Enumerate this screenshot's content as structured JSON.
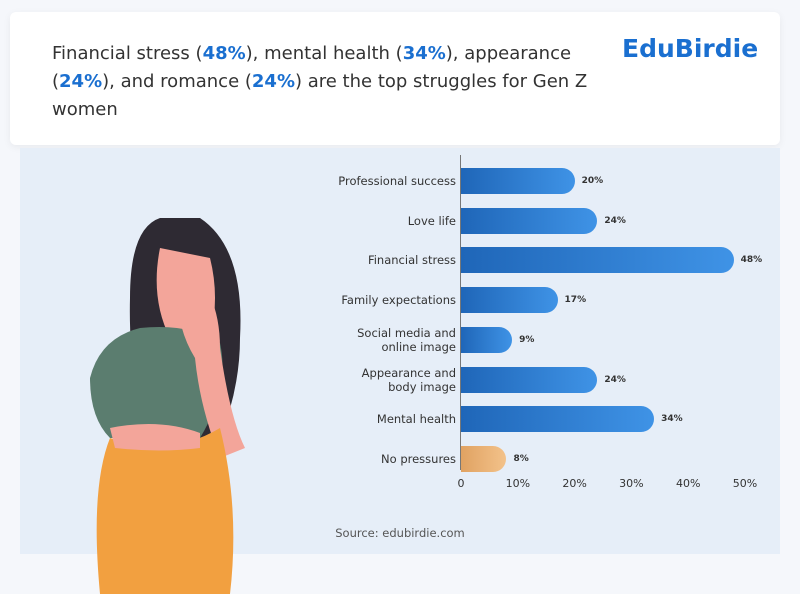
{
  "header": {
    "title_parts": [
      "Financial stress (",
      "48%",
      "), mental health (",
      "34%",
      "), appearance (",
      "24%",
      "), and romance (",
      "24%",
      ") are the top struggles for Gen Z women"
    ],
    "logo": "EduBirdie"
  },
  "chart_data": {
    "type": "bar",
    "orientation": "horizontal",
    "categories": [
      "Professional success",
      "Love life",
      "Financial stress",
      "Family expectations",
      "Social media and online image",
      "Appearance and body image",
      "Mental health",
      "No pressures"
    ],
    "values": [
      20,
      24,
      48,
      17,
      9,
      24,
      34,
      8
    ],
    "value_labels": [
      "20%",
      "24%",
      "48%",
      "17%",
      "9%",
      "24%",
      "34%",
      "8%"
    ],
    "colors": [
      "#1f66b8",
      "#1f66b8",
      "#1f66b8",
      "#1f66b8",
      "#1f66b8",
      "#1f66b8",
      "#1f66b8",
      "#e0a262"
    ],
    "xlim": [
      0,
      50
    ],
    "xticks": [
      0,
      {
        "value": 10,
        "label": "10%"
      },
      {
        "value": 20,
        "label": "20%"
      },
      {
        "value": 30,
        "label": "30%"
      },
      {
        "value": 40,
        "label": "40%"
      },
      {
        "value": 50,
        "label": "50%"
      }
    ]
  },
  "footer": {
    "source": "Source: edubirdie.com"
  }
}
